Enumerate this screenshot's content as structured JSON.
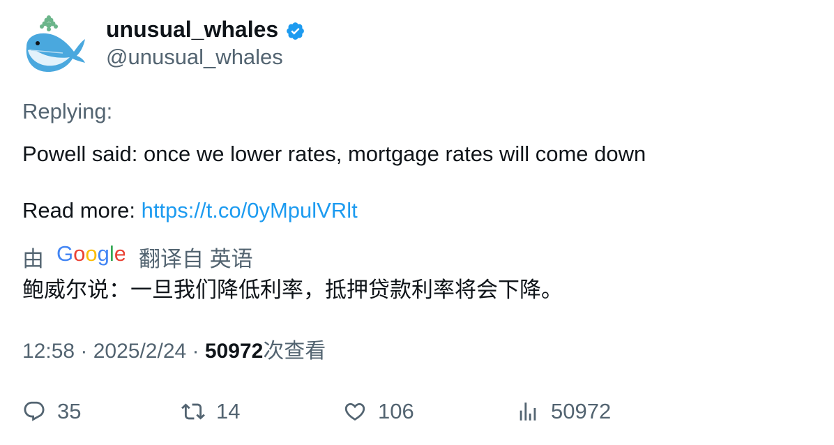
{
  "user": {
    "display_name": "unusual_whales",
    "handle": "@unusual_whales",
    "verified_color": "#1d9bf0"
  },
  "tweet": {
    "replying_label": "Replying:",
    "text_line1": "Powell said: once we lower rates, mortgage rates will come down",
    "read_more_label": "Read more: ",
    "link_text": "https://t.co/0yMpulVRlt",
    "translate_by": "由",
    "translate_from": "翻译自 英语",
    "translated_text": "鲍威尔说：一旦我们降低利率，抵押贷款利率将会下降。",
    "time": "12:58 · 2025/2/24 · ",
    "views_count": "50972",
    "views_label": "次查看"
  },
  "actions": {
    "replies": "35",
    "retweets": "14",
    "likes": "106",
    "views": "50972"
  },
  "colors": {
    "text": "#0f1419",
    "muted": "#536471",
    "link": "#1d9bf0"
  },
  "icons": [
    "whale-avatar-icon",
    "verified-badge-icon",
    "google-logo",
    "reply-icon",
    "retweet-icon",
    "like-icon",
    "views-icon"
  ]
}
